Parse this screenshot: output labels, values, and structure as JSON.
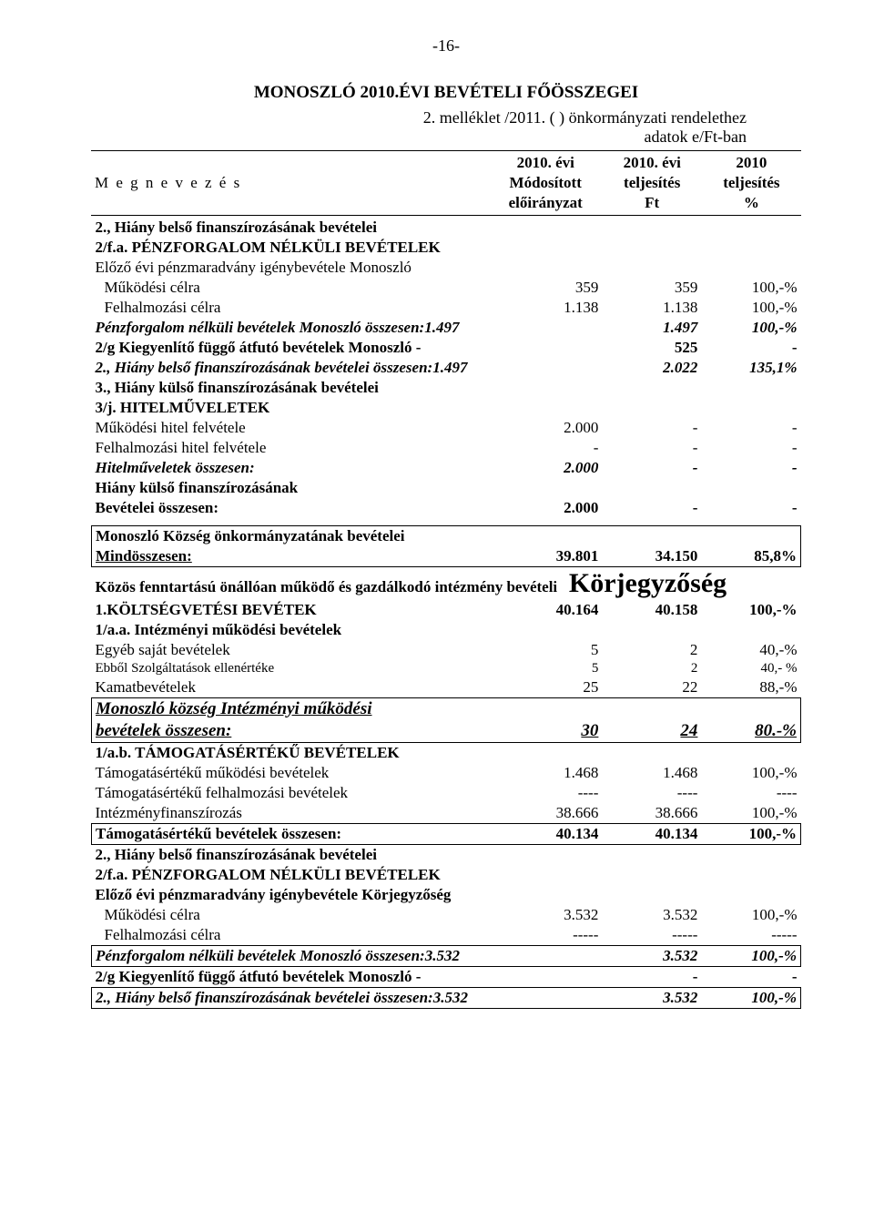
{
  "page_number": "-16-",
  "title_main": "MONOSZLÓ 2010.ÉVI  BEVÉTELI  FŐÖSSZEGEI",
  "title_sub1": "2. melléklet  /2011.  (  ) önkormányzati rendelethez",
  "title_sub2": "adatok e/Ft-ban",
  "header": {
    "left": "M e g n e v e z é s",
    "c1l1": "2010. évi",
    "c1l2": "Módosított",
    "c1l3": "előirányzat",
    "c2l1": "2010. évi",
    "c2l2": "teljesítés",
    "c2l3": "Ft",
    "c3l1": "2010",
    "c3l2": "teljesítés",
    "c3l3": "%"
  },
  "s2_title": "2., Hiány belső finanszírozásának bevételei",
  "s2fa_title": "2/f.a. PÉNZFORGALOM NÉLKÜLI BEVÉTELEK",
  "s2fa_sub": "Előző évi pénzmaradvány igénybevétele Monoszló",
  "r_muk": {
    "label": "Működési célra",
    "a": "359",
    "b": "359",
    "c": "100,-%"
  },
  "r_felh": {
    "label": "Felhalmozási  célra",
    "a": "1.138",
    "b": "1.138",
    "c": "100,-%"
  },
  "r_pfnb": {
    "label": "Pénzforgalom nélküli bevételek Monoszló összesen:1.497",
    "b": "1.497",
    "c": "100,-%"
  },
  "r_2g": {
    "label": "2/g Kiegyenlítő függő átfutó bevételek Monoszló       -",
    "b": "525",
    "c": "-"
  },
  "r_2sum": {
    "label": "2., Hiány belső finanszírozásának bevételei összesen:1.497",
    "b": "2.022",
    "c": "135,1%"
  },
  "s3_title": "3., Hiány külső finanszírozásának bevételei",
  "s3j_title": "3/j. HITELMŰVELETEK",
  "r_mhf": {
    "label": "Működési hitel felvétele",
    "a": "2.000",
    "b": "-",
    "c": "-"
  },
  "r_fhf": {
    "label": "Felhalmozási hitel felvétele",
    "a": "-",
    "b": "-",
    "c": "-"
  },
  "r_hitossz": {
    "label": "Hitelműveletek összesen:",
    "a": "2.000",
    "b": "-",
    "c": "-"
  },
  "r_hkf1": "Hiány külső finanszírozásának",
  "r_hkf2": {
    "label": "Bevételei összesen:",
    "a": "2.000",
    "b": "-",
    "c": "-"
  },
  "r_mind1": "Monoszló Község önkormányzatának bevételei",
  "r_mind2": {
    "label": "Mindösszesen:",
    "a": "39.801",
    "b": "34.150",
    "c": "85,8%"
  },
  "korj_pre": "Közös fenntartású önállóan működő és gazdálkodó intézmény bevételi",
  "korj_big": "Körjegyzőség",
  "r_kb": {
    "label": "1.KÖLTSÉGVETÉSI BEVÉTEK",
    "a": "40.164",
    "b": "40.158",
    "c": "100,-%"
  },
  "s1aa_title": "1/a.a. Intézményi működési bevételek",
  "r_egyeb": {
    "label": "Egyéb saját bevételek",
    "a": "5",
    "b": "2",
    "c": "40,-%"
  },
  "r_ebbel": {
    "label": "Ebből Szolgáltatások ellenértéke",
    "a": "5",
    "b": "2",
    "c": "40,- %"
  },
  "r_kamat": {
    "label": "Kamatbevételek",
    "a": "25",
    "b": "22",
    "c": "88,-%"
  },
  "r_imb1": "Monoszló község Intézményi működési",
  "r_imb2": {
    "label": "bevételek összesen:",
    "a": "30",
    "b": "24",
    "c": "80.-%"
  },
  "s1ab_title": "1/a.b. TÁMOGATÁSÉRTÉKŰ BEVÉTELEK",
  "r_tmb": {
    "label": "Támogatásértékű működési bevételek",
    "a": "1.468",
    "b": "1.468",
    "c": "100,-%"
  },
  "r_tfb": {
    "label": "Támogatásértékű felhalmozási bevételek",
    "a": "----",
    "b": "----",
    "c": "----"
  },
  "r_intf": {
    "label": "Intézményfinanszírozás",
    "a": "38.666",
    "b": "38.666",
    "c": "100,-%"
  },
  "r_tbo": {
    "label": "Támogatásértékű bevételek összesen:",
    "a": "40.134",
    "b": "40.134",
    "c": "100,-%"
  },
  "s2b_title": "2., Hiány belső finanszírozásának bevételei",
  "s2bfa_title": "2/f.a. PÉNZFORGALOM NÉLKÜLI BEVÉTELEK",
  "s2bfa_sub": "Előző évi pénzmaradvány igénybevétele Körjegyzőség",
  "r_muk2": {
    "label": "Működési célra",
    "a": "3.532",
    "b": "3.532",
    "c": "100,-%"
  },
  "r_felh2": {
    "label": "Felhalmozási  célra",
    "a": "-----",
    "b": "-----",
    "c": "-----"
  },
  "r_pfnb2": {
    "label": "Pénzforgalom nélküli bevételek Monoszló összesen:3.532",
    "b": "3.532",
    "c": "100,-%"
  },
  "r_2g2": {
    "label": "2/g Kiegyenlítő függő átfutó bevételek Monoszló      -",
    "b": "-",
    "c": "-"
  },
  "r_2sum2": {
    "label": "2., Hiány belső finanszírozásának bevételei összesen:3.532",
    "b": "3.532",
    "c": "100,-%"
  }
}
